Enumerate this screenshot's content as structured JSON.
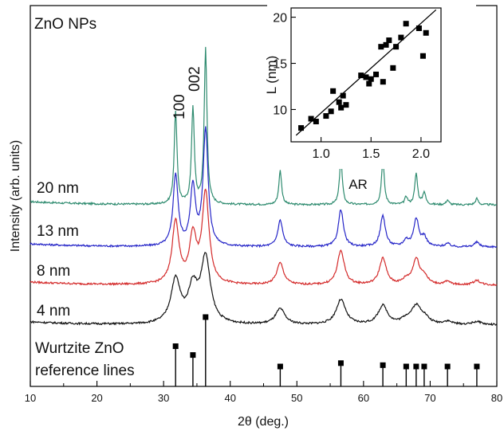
{
  "chart_data": [
    {
      "type": "line",
      "title": "",
      "xlabel": "2θ (deg.)",
      "ylabel": "Intensity (arb. units)",
      "xlim": [
        10,
        80
      ],
      "xticks": [
        10,
        20,
        30,
        40,
        50,
        60,
        70,
        80
      ],
      "yticks_shown": false,
      "annotations": {
        "sample": "ZnO NPs",
        "peak_100": "100",
        "peak_002": "002",
        "reference_line1": "Wurtzite ZnO",
        "reference_line2": "reference lines"
      },
      "peaks_2theta": [
        31.8,
        34.4,
        36.3,
        47.5,
        56.6,
        62.9,
        66.4,
        67.9,
        69.1,
        72.6,
        77.0
      ],
      "series": [
        {
          "name": "20 nm",
          "color": "#2e8b6f",
          "peak_heights": [
            0.6,
            0.62,
            1.0,
            0.22,
            0.3,
            0.29,
            0.05,
            0.2,
            0.08,
            0.03,
            0.04
          ],
          "fwhm": 0.5
        },
        {
          "name": "13 nm",
          "color": "#2626c8",
          "peak_heights": [
            0.46,
            0.38,
            0.75,
            0.17,
            0.24,
            0.2,
            0.04,
            0.18,
            0.06,
            0.02,
            0.03
          ],
          "fwhm": 0.9
        },
        {
          "name": "8 nm",
          "color": "#d42a2a",
          "peak_heights": [
            0.4,
            0.3,
            0.58,
            0.14,
            0.22,
            0.17,
            0.03,
            0.16,
            0.05,
            0.02,
            0.03
          ],
          "fwhm": 1.25
        },
        {
          "name": "4 nm",
          "color": "#111111",
          "peak_heights": [
            0.28,
            0.22,
            0.42,
            0.1,
            0.16,
            0.12,
            0.03,
            0.11,
            0.04,
            0.02,
            0.02
          ],
          "fwhm": 1.7
        }
      ],
      "reference_lines": {
        "x": [
          31.8,
          34.4,
          36.3,
          47.5,
          56.6,
          62.9,
          66.4,
          67.9,
          69.1,
          72.6,
          77.0
        ],
        "relative_intensity": [
          0.57,
          0.44,
          1.0,
          0.23,
          0.32,
          0.29,
          0.04,
          0.23,
          0.11,
          0.02,
          0.04
        ]
      }
    },
    {
      "type": "scatter",
      "title": "",
      "xlabel": "AR",
      "ylabel": "L (nm)",
      "xlim": [
        0.7,
        2.2
      ],
      "ylim": [
        6.5,
        21
      ],
      "xticks": [
        1.0,
        1.5,
        2.0
      ],
      "yticks": [
        10,
        15,
        20
      ],
      "points": [
        [
          0.8,
          8.0
        ],
        [
          0.9,
          9.0
        ],
        [
          0.95,
          8.7
        ],
        [
          1.05,
          9.3
        ],
        [
          1.1,
          9.8
        ],
        [
          1.12,
          12.0
        ],
        [
          1.18,
          10.8
        ],
        [
          1.2,
          10.2
        ],
        [
          1.25,
          10.5
        ],
        [
          1.22,
          11.5
        ],
        [
          1.4,
          13.7
        ],
        [
          1.45,
          13.5
        ],
        [
          1.48,
          12.8
        ],
        [
          1.5,
          13.3
        ],
        [
          1.55,
          13.8
        ],
        [
          1.6,
          16.8
        ],
        [
          1.62,
          13.0
        ],
        [
          1.65,
          17.0
        ],
        [
          1.68,
          17.5
        ],
        [
          1.75,
          16.8
        ],
        [
          1.72,
          14.5
        ],
        [
          1.8,
          17.8
        ],
        [
          1.85,
          19.3
        ],
        [
          1.98,
          18.8
        ],
        [
          2.02,
          15.8
        ],
        [
          2.05,
          18.3
        ]
      ],
      "fit_line": {
        "x": [
          0.75,
          2.15
        ],
        "y": [
          7.2,
          20.8
        ]
      }
    }
  ]
}
